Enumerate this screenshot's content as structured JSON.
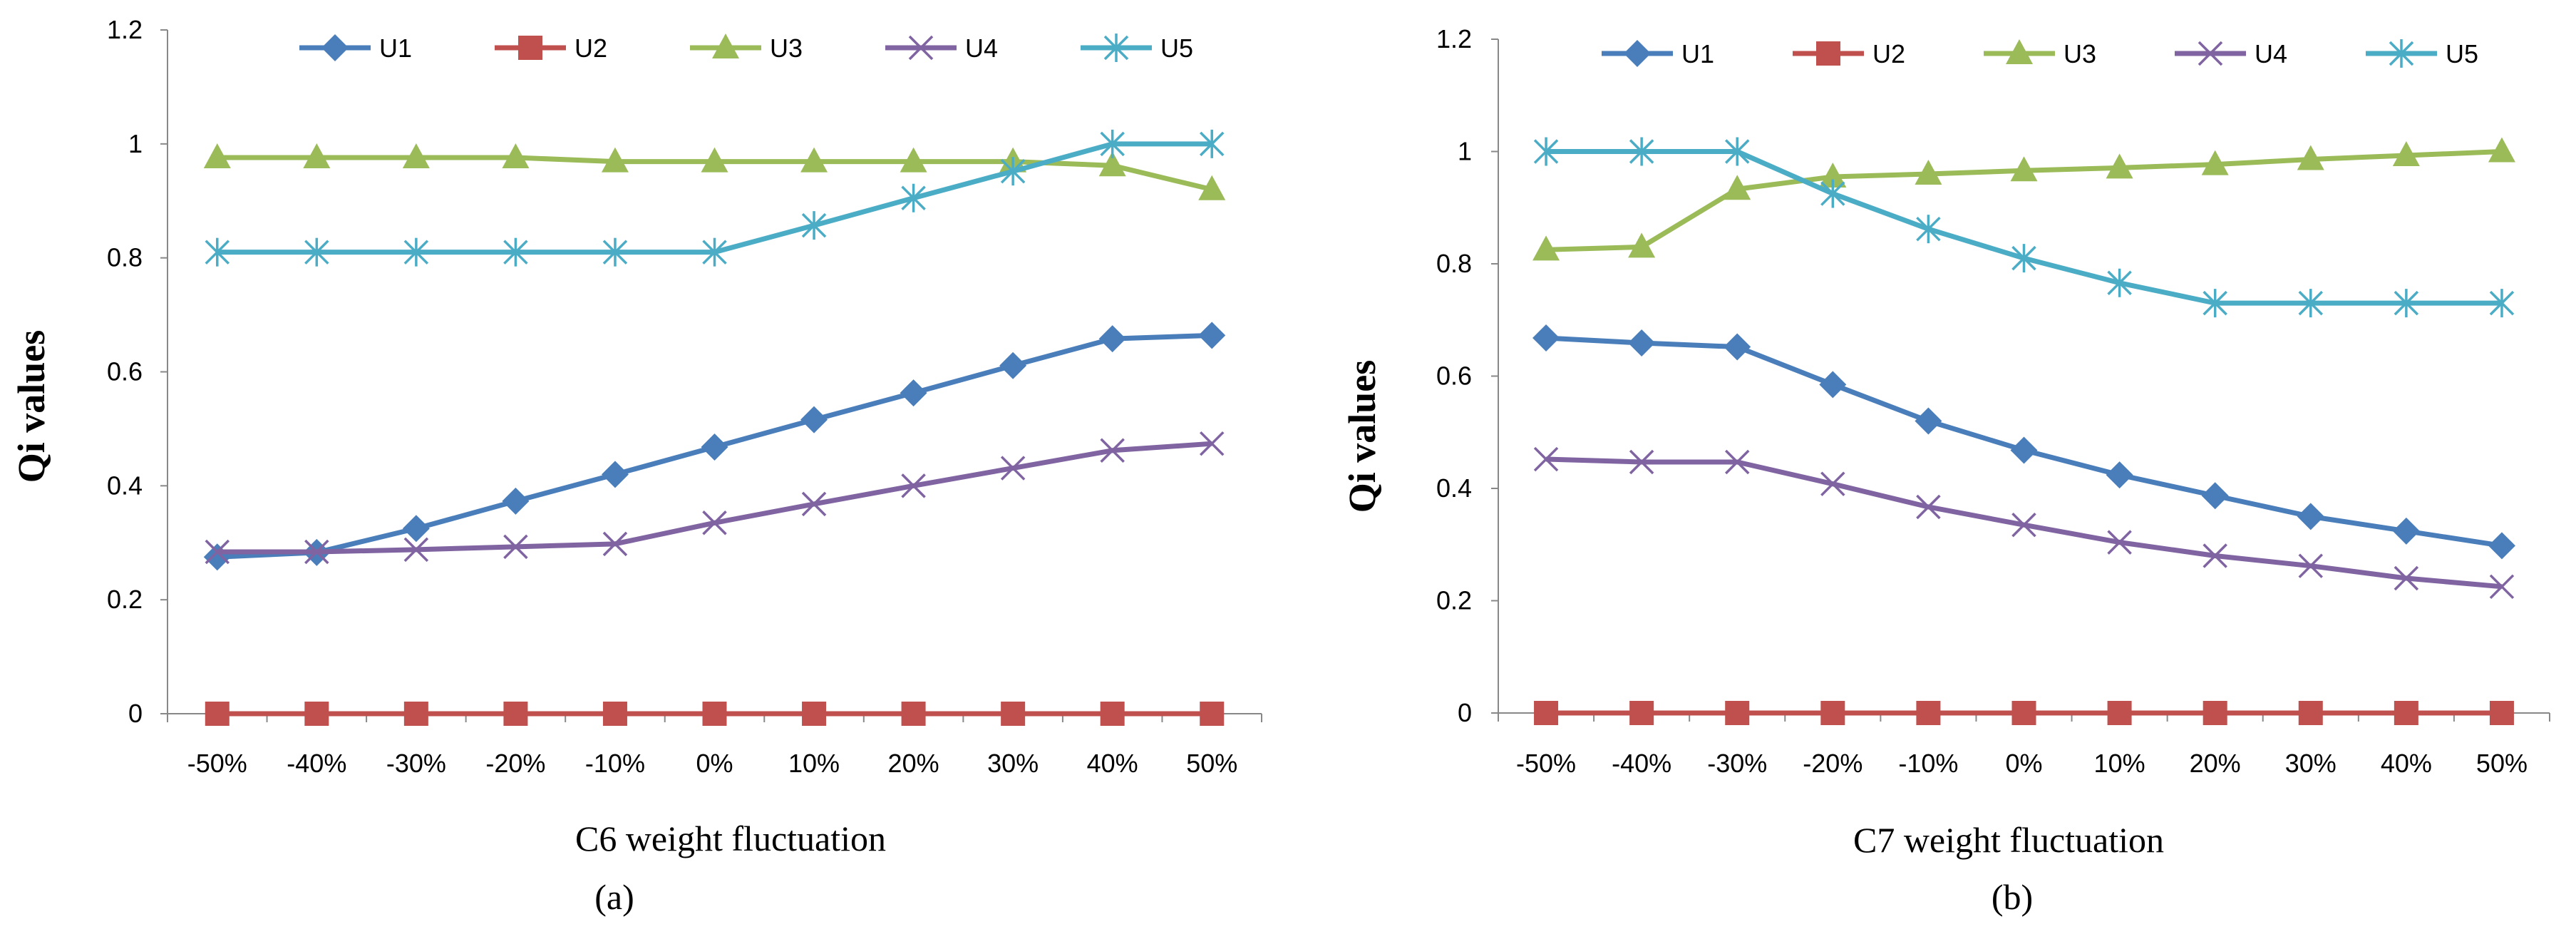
{
  "chart_data": [
    {
      "type": "line",
      "panel_label": "(a)",
      "xlabel": "C6 weight fluctuation",
      "ylabel": "Qi values",
      "ylim": [
        0,
        1.2
      ],
      "yticks": [
        "0",
        "0.2",
        "0.4",
        "0.6",
        "0.8",
        "1",
        "1.2"
      ],
      "categories": [
        "-50%",
        "-40%",
        "-30%",
        "-20%",
        "-10%",
        "0%",
        "10%",
        "20%",
        "30%",
        "40%",
        "50%"
      ],
      "legend_position": "top",
      "series": [
        {
          "name": "U1",
          "color": "#4a7ebb",
          "marker": "diamond",
          "values": [
            0.275,
            0.283,
            0.325,
            0.373,
            0.42,
            0.468,
            0.516,
            0.563,
            0.611,
            0.658,
            0.664
          ]
        },
        {
          "name": "U2",
          "color": "#c0504d",
          "marker": "square",
          "values": [
            0,
            0,
            0,
            0,
            0,
            0,
            0,
            0,
            0,
            0,
            0
          ]
        },
        {
          "name": "U3",
          "color": "#9bbb59",
          "marker": "triangle",
          "values": [
            0.976,
            0.976,
            0.976,
            0.976,
            0.969,
            0.969,
            0.969,
            0.969,
            0.969,
            0.962,
            0.92
          ]
        },
        {
          "name": "U4",
          "color": "#8064a2",
          "marker": "x",
          "values": [
            0.284,
            0.284,
            0.288,
            0.293,
            0.298,
            0.335,
            0.368,
            0.4,
            0.431,
            0.462,
            0.474
          ]
        },
        {
          "name": "U5",
          "color": "#4bacc6",
          "marker": "asterisk",
          "values": [
            0.81,
            0.81,
            0.81,
            0.81,
            0.81,
            0.81,
            0.857,
            0.905,
            0.952,
            1.0,
            1.0
          ]
        }
      ]
    },
    {
      "type": "line",
      "panel_label": "(b)",
      "xlabel": "C7 weight fluctuation",
      "ylabel": "Qi values",
      "ylim": [
        0,
        1.2
      ],
      "yticks": [
        "0",
        "0.2",
        "0.4",
        "0.6",
        "0.8",
        "1",
        "1.2"
      ],
      "categories": [
        "-50%",
        "-40%",
        "-30%",
        "-20%",
        "-10%",
        "0%",
        "10%",
        "20%",
        "30%",
        "40%",
        "50%"
      ],
      "legend_position": "top",
      "series": [
        {
          "name": "U1",
          "color": "#4a7ebb",
          "marker": "diamond",
          "values": [
            0.668,
            0.659,
            0.652,
            0.585,
            0.52,
            0.468,
            0.424,
            0.387,
            0.35,
            0.324,
            0.298
          ]
        },
        {
          "name": "U2",
          "color": "#c0504d",
          "marker": "square",
          "values": [
            0,
            0,
            0,
            0,
            0,
            0,
            0,
            0,
            0,
            0,
            0
          ]
        },
        {
          "name": "U3",
          "color": "#9bbb59",
          "marker": "triangle",
          "values": [
            0.825,
            0.83,
            0.933,
            0.955,
            0.96,
            0.966,
            0.971,
            0.977,
            0.986,
            0.993,
            1.0
          ]
        },
        {
          "name": "U4",
          "color": "#8064a2",
          "marker": "x",
          "values": [
            0.452,
            0.447,
            0.447,
            0.408,
            0.367,
            0.335,
            0.304,
            0.28,
            0.262,
            0.24,
            0.225
          ]
        },
        {
          "name": "U5",
          "color": "#4bacc6",
          "marker": "asterisk",
          "values": [
            1.0,
            1.0,
            1.0,
            0.925,
            0.862,
            0.81,
            0.766,
            0.73,
            0.73,
            0.73,
            0.73
          ]
        }
      ]
    }
  ]
}
